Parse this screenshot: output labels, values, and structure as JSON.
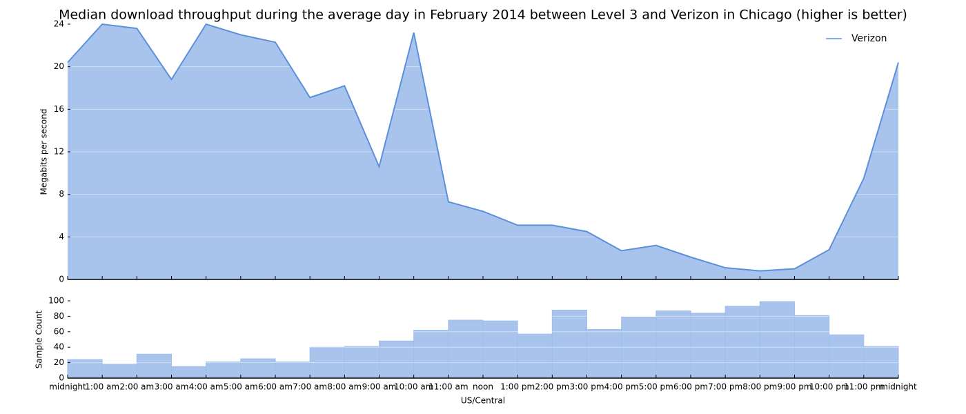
{
  "chart_data": [
    {
      "type": "area",
      "title": "Median download throughput during the average day in February 2014 between Level 3 and Verizon in Chicago (higher is better)",
      "ylabel": "Megabits per second",
      "x": [
        0,
        1,
        2,
        3,
        4,
        5,
        6,
        7,
        8,
        9,
        10,
        11,
        12,
        13,
        14,
        15,
        16,
        17,
        18,
        19,
        20,
        21,
        22,
        23,
        24
      ],
      "series": [
        {
          "name": "Verizon",
          "color": "#5b8fdb",
          "values": [
            20.4,
            24.0,
            23.6,
            18.8,
            24.0,
            23.0,
            22.3,
            17.1,
            18.2,
            10.6,
            23.2,
            7.3,
            6.4,
            5.1,
            5.1,
            4.5,
            2.7,
            3.2,
            2.1,
            1.1,
            0.8,
            1.0,
            2.8,
            9.5,
            20.4
          ]
        }
      ],
      "fill": "#a9c4ec",
      "xlim": [
        0,
        24
      ],
      "xticks": [
        0,
        1,
        2,
        3,
        4,
        5,
        6,
        7,
        8,
        9,
        10,
        11,
        12,
        13,
        14,
        15,
        16,
        17,
        18,
        19,
        20,
        21,
        22,
        23,
        24
      ],
      "ylim": [
        0,
        24
      ],
      "yticks": [
        0,
        4,
        8,
        12,
        16,
        20,
        24
      ],
      "grid": true,
      "legend": "upper right"
    },
    {
      "type": "histogram",
      "ylabel": "Sample Count",
      "xlabel": "US/Central",
      "bins": [
        0,
        1,
        2,
        3,
        4,
        5,
        6,
        7,
        8,
        9,
        10,
        11,
        12,
        13,
        14,
        15,
        16,
        17,
        18,
        19,
        20,
        21,
        22,
        23,
        24
      ],
      "values": [
        24,
        18,
        31,
        15,
        21,
        25,
        21,
        40,
        41,
        48,
        62,
        75,
        74,
        57,
        88,
        63,
        79,
        87,
        84,
        93,
        99,
        81,
        56,
        41
      ],
      "color": "#a9c4ec",
      "xlim": [
        0,
        24
      ],
      "xticks": [
        {
          "value": 0,
          "label": "midnight"
        },
        {
          "value": 1,
          "label": "1:00 am"
        },
        {
          "value": 2,
          "label": "2:00 am"
        },
        {
          "value": 3,
          "label": "3:00 am"
        },
        {
          "value": 4,
          "label": "4:00 am"
        },
        {
          "value": 5,
          "label": "5:00 am"
        },
        {
          "value": 6,
          "label": "6:00 am"
        },
        {
          "value": 7,
          "label": "7:00 am"
        },
        {
          "value": 8,
          "label": "8:00 am"
        },
        {
          "value": 9,
          "label": "9:00 am"
        },
        {
          "value": 10,
          "label": "10:00 am"
        },
        {
          "value": 11,
          "label": "11:00 am"
        },
        {
          "value": 12,
          "label": "noon"
        },
        {
          "value": 13,
          "label": "1:00 pm"
        },
        {
          "value": 14,
          "label": "2:00 pm"
        },
        {
          "value": 15,
          "label": "3:00 pm"
        },
        {
          "value": 16,
          "label": "4:00 pm"
        },
        {
          "value": 17,
          "label": "5:00 pm"
        },
        {
          "value": 18,
          "label": "6:00 pm"
        },
        {
          "value": 19,
          "label": "7:00 pm"
        },
        {
          "value": 20,
          "label": "8:00 pm"
        },
        {
          "value": 21,
          "label": "9:00 pm"
        },
        {
          "value": 22,
          "label": "10:00 pm"
        },
        {
          "value": 23,
          "label": "11:00 pm"
        },
        {
          "value": 24,
          "label": "midnight"
        }
      ],
      "ylim": [
        0,
        100
      ],
      "yticks": [
        0,
        20,
        40,
        60,
        80,
        100
      ],
      "grid": true
    }
  ]
}
